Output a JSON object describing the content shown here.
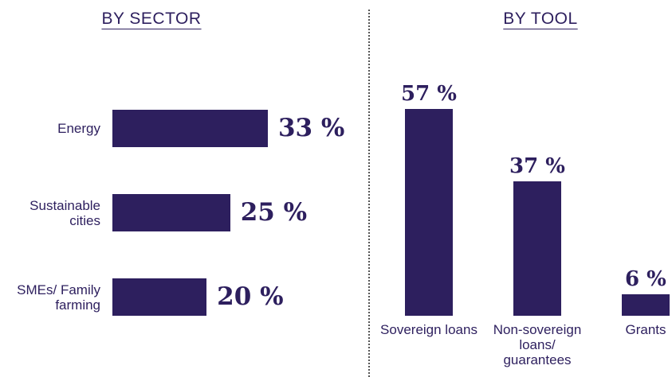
{
  "chart_data": [
    {
      "type": "hbar",
      "title": "BY SECTOR",
      "categories": [
        "Energy",
        "Sustainable cities",
        "SMEs/ Family farming"
      ],
      "values": [
        33,
        25,
        20
      ],
      "value_labels": [
        "33 %",
        "25 %",
        "20 %"
      ],
      "color": "#2d1f5e",
      "xlim": [
        0,
        35
      ]
    },
    {
      "type": "bar",
      "title": "BY TOOL",
      "categories": [
        "Sovereign loans",
        "Non-sovereign loans/ guarantees",
        "Grants"
      ],
      "values": [
        57,
        37,
        6
      ],
      "value_labels": [
        "57 %",
        "37 %",
        "6 %"
      ],
      "color": "#2d1f5e",
      "ylim": [
        0,
        60
      ]
    }
  ]
}
